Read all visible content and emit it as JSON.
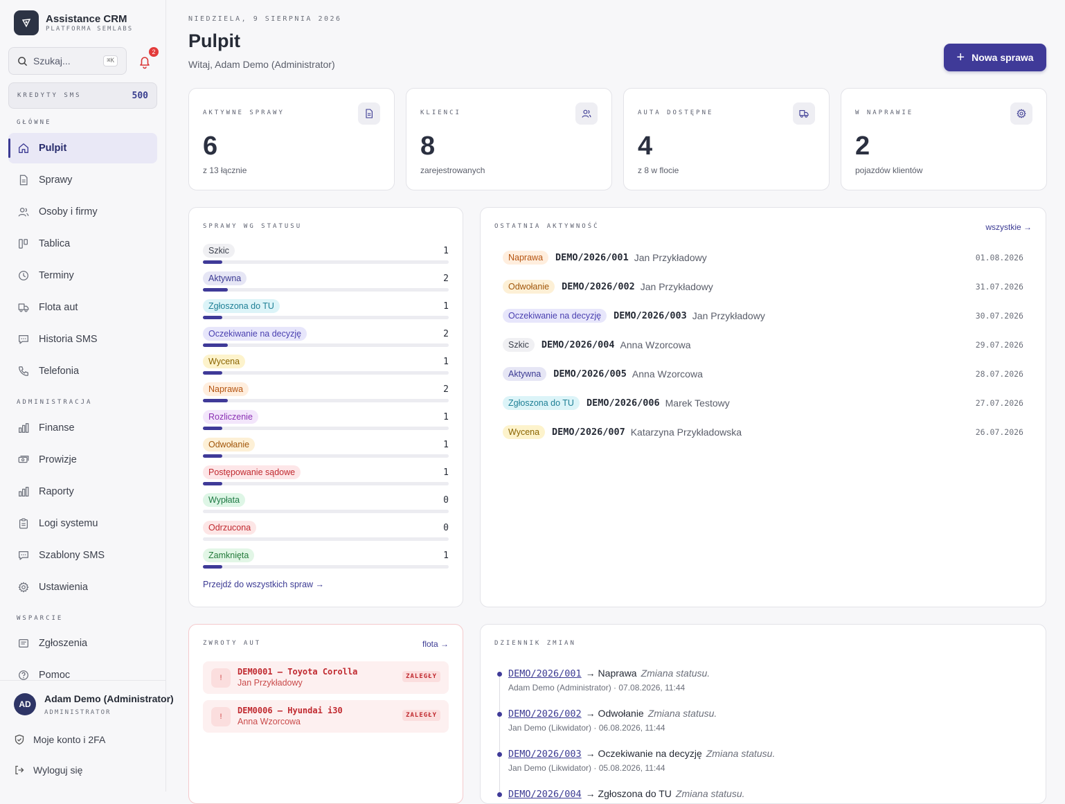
{
  "brand": {
    "title": "Assistance CRM",
    "subtitle": "PLATFORMA SEMLABS"
  },
  "search": {
    "placeholder": "Szukaj...",
    "shortcut": "⌘K"
  },
  "notifications": {
    "count": "2"
  },
  "sms_credits": {
    "label": "KREDYTY SMS",
    "value": "500"
  },
  "nav": {
    "main_label": "GŁÓWNE",
    "main": [
      {
        "label": "Pulpit",
        "icon": "home-icon",
        "active": true
      },
      {
        "label": "Sprawy",
        "icon": "file-icon"
      },
      {
        "label": "Osoby i firmy",
        "icon": "users-icon"
      },
      {
        "label": "Tablica",
        "icon": "kanban-icon"
      },
      {
        "label": "Terminy",
        "icon": "clock-icon"
      },
      {
        "label": "Flota aut",
        "icon": "truck-icon"
      },
      {
        "label": "Historia SMS",
        "icon": "message-icon"
      },
      {
        "label": "Telefonia",
        "icon": "phone-icon"
      }
    ],
    "admin_label": "ADMINISTRACJA",
    "admin": [
      {
        "label": "Finanse",
        "icon": "bar-chart-icon"
      },
      {
        "label": "Prowizje",
        "icon": "cash-icon"
      },
      {
        "label": "Raporty",
        "icon": "bar-chart-icon"
      },
      {
        "label": "Logi systemu",
        "icon": "clipboard-icon"
      },
      {
        "label": "Szablony SMS",
        "icon": "message-icon"
      },
      {
        "label": "Ustawienia",
        "icon": "gear-icon"
      }
    ],
    "support_label": "WSPARCIE",
    "support": [
      {
        "label": "Zgłoszenia",
        "icon": "ticket-icon"
      },
      {
        "label": "Pomoc",
        "icon": "help-icon"
      }
    ]
  },
  "user": {
    "initials": "AD",
    "name": "Adam Demo (Administrator)",
    "role": "ADMINISTRATOR",
    "account_link": "Moje konto i 2FA",
    "logout": "Wyloguj się"
  },
  "header": {
    "date": "NIEDZIELA, 9 SIERPNIA 2026",
    "title": "Pulpit",
    "welcome": "Witaj, Adam Demo (Administrator)",
    "new_button": "Nowa sprawa"
  },
  "stats": [
    {
      "label": "AKTYWNE SPRAWY",
      "value": "6",
      "sub": "z 13 łącznie",
      "icon": "file-icon"
    },
    {
      "label": "KLIENCI",
      "value": "8",
      "sub": "zarejestrowanych",
      "icon": "users-icon"
    },
    {
      "label": "AUTA DOSTĘPNE",
      "value": "4",
      "sub": "z 8 w flocie",
      "icon": "truck-icon"
    },
    {
      "label": "W NAPRAWIE",
      "value": "2",
      "sub": "pojazdów klientów",
      "icon": "gear-icon"
    }
  ],
  "status_card": {
    "title": "SPRAWY WG STATUSU",
    "link": "Przejdź do wszystkich spraw →",
    "max": 6,
    "items": [
      {
        "label": "Szkic",
        "count": 1,
        "bg": "#f0f0f3",
        "fg": "#3c404c"
      },
      {
        "label": "Aktywna",
        "count": 2,
        "bg": "#e6e6f5",
        "fg": "#3b3a93"
      },
      {
        "label": "Zgłoszona do TU",
        "count": 1,
        "bg": "#dcf4f8",
        "fg": "#1d7f95"
      },
      {
        "label": "Oczekiwanie na decyzję",
        "count": 2,
        "bg": "#e7e6fb",
        "fg": "#4a40b0"
      },
      {
        "label": "Wycena",
        "count": 1,
        "bg": "#fdf3cc",
        "fg": "#8a6400"
      },
      {
        "label": "Naprawa",
        "count": 2,
        "bg": "#ffeede",
        "fg": "#b4530f"
      },
      {
        "label": "Rozliczenie",
        "count": 1,
        "bg": "#f3e6fb",
        "fg": "#8a2fb3"
      },
      {
        "label": "Odwołanie",
        "count": 1,
        "bg": "#fdf0d6",
        "fg": "#a1560a"
      },
      {
        "label": "Postępowanie sądowe",
        "count": 1,
        "bg": "#fde6e8",
        "fg": "#c0292f"
      },
      {
        "label": "Wypłata",
        "count": 0,
        "bg": "#def6e6",
        "fg": "#1f7a45"
      },
      {
        "label": "Odrzucona",
        "count": 0,
        "bg": "#fde6e6",
        "fg": "#c0292f"
      },
      {
        "label": "Zamknięta",
        "count": 1,
        "bg": "#e2f6e6",
        "fg": "#237a3a"
      }
    ]
  },
  "activity": {
    "title": "OSTATNIA AKTYWNOŚĆ",
    "link": "wszystkie →",
    "items": [
      {
        "status": "Naprawa",
        "code": "DEMO/2026/001",
        "name": "Jan Przykładowy",
        "date": "01.08.2026",
        "bg": "#ffeede",
        "fg": "#b4530f"
      },
      {
        "status": "Odwołanie",
        "code": "DEMO/2026/002",
        "name": "Jan Przykładowy",
        "date": "31.07.2026",
        "bg": "#fdf0d6",
        "fg": "#a1560a"
      },
      {
        "status": "Oczekiwanie na decyzję",
        "code": "DEMO/2026/003",
        "name": "Jan Przykładowy",
        "date": "30.07.2026",
        "bg": "#e7e6fb",
        "fg": "#4a40b0"
      },
      {
        "status": "Szkic",
        "code": "DEMO/2026/004",
        "name": "Anna Wzorcowa",
        "date": "29.07.2026",
        "bg": "#f0f0f3",
        "fg": "#3c404c"
      },
      {
        "status": "Aktywna",
        "code": "DEMO/2026/005",
        "name": "Anna Wzorcowa",
        "date": "28.07.2026",
        "bg": "#e6e6f5",
        "fg": "#3b3a93"
      },
      {
        "status": "Zgłoszona do TU",
        "code": "DEMO/2026/006",
        "name": "Marek Testowy",
        "date": "27.07.2026",
        "bg": "#dcf4f8",
        "fg": "#1d7f95"
      },
      {
        "status": "Wycena",
        "code": "DEMO/2026/007",
        "name": "Katarzyna Przykładowska",
        "date": "26.07.2026",
        "bg": "#fdf3cc",
        "fg": "#8a6400"
      }
    ]
  },
  "returns": {
    "title": "ZWROTY AUT",
    "link": "flota →",
    "items": [
      {
        "title": "DEM0001 — Toyota Corolla",
        "person": "Jan Przykładowy",
        "badge": "ZALEGŁY",
        "icon": "!"
      },
      {
        "title": "DEM0006 — Hyundai i30",
        "person": "Anna Wzorcowa",
        "badge": "ZALEGŁY",
        "icon": "!"
      }
    ]
  },
  "changelog": {
    "title": "DZIENNIK ZMIAN",
    "items": [
      {
        "code": "DEMO/2026/001",
        "arrow": "→ Naprawa",
        "note": "Zmiana statusu.",
        "meta": "Adam Demo (Administrator) · 07.08.2026, 11:44"
      },
      {
        "code": "DEMO/2026/002",
        "arrow": "→ Odwołanie",
        "note": "Zmiana statusu.",
        "meta": "Jan Demo (Likwidator) · 06.08.2026, 11:44"
      },
      {
        "code": "DEMO/2026/003",
        "arrow": "→ Oczekiwanie na decyzję",
        "note": "Zmiana statusu.",
        "meta": "Jan Demo (Likwidator) · 05.08.2026, 11:44"
      },
      {
        "code": "DEMO/2026/004",
        "arrow": "→ Zgłoszona do TU",
        "note": "Zmiana statusu.",
        "meta": ""
      }
    ]
  }
}
